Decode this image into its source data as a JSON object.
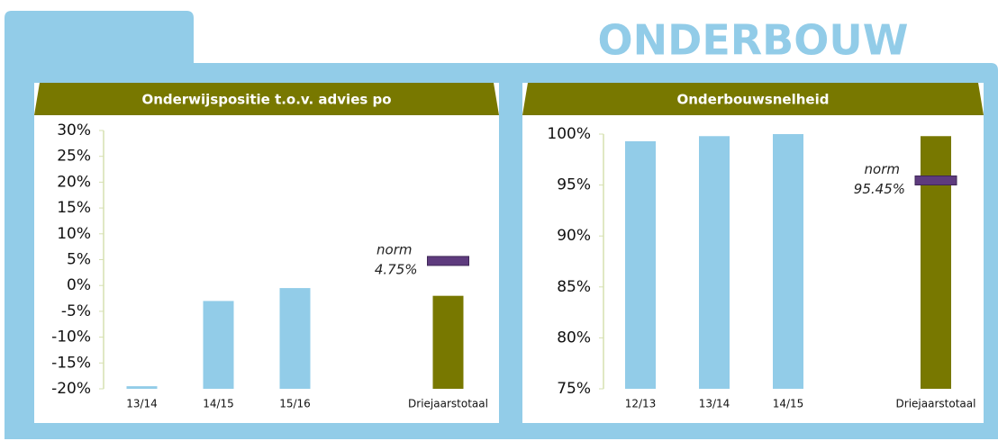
{
  "header": {
    "title": "ONDERBOUW"
  },
  "chart_data": [
    {
      "type": "bar",
      "title": "Onderwijspositie t.o.v. advies po",
      "categories": [
        "13/14",
        "14/15",
        "15/16",
        "Driejaarstotaal"
      ],
      "values": [
        -19.5,
        -3,
        -0.5,
        -2
      ],
      "colors": [
        "#92cce8",
        "#92cce8",
        "#92cce8",
        "#787800"
      ],
      "ylim": [
        -20,
        30
      ],
      "yticks": [
        {
          "value": -20,
          "label": "-20%"
        },
        {
          "value": -15,
          "label": "-15%"
        },
        {
          "value": -10,
          "label": "-10%"
        },
        {
          "value": -5,
          "label": "-5%"
        },
        {
          "value": 0,
          "label": "0%"
        },
        {
          "value": 5,
          "label": "5%"
        },
        {
          "value": 10,
          "label": "10%"
        },
        {
          "value": 15,
          "label": "15%"
        },
        {
          "value": 20,
          "label": "20%"
        },
        {
          "value": 25,
          "label": "25%"
        },
        {
          "value": 30,
          "label": "30%"
        }
      ],
      "norm": {
        "label": "norm",
        "value": 4.75,
        "value_label": "4.75%",
        "color": "#5e3b7e"
      }
    },
    {
      "type": "bar",
      "title": "Onderbouwsnelheid",
      "categories": [
        "12/13",
        "13/14",
        "14/15",
        "Driejaarstotaal"
      ],
      "values": [
        99.3,
        99.8,
        100,
        99.8
      ],
      "colors": [
        "#92cce8",
        "#92cce8",
        "#92cce8",
        "#787800"
      ],
      "ylim": [
        75,
        100
      ],
      "yticks": [
        {
          "value": 75,
          "label": "75%"
        },
        {
          "value": 80,
          "label": "80%"
        },
        {
          "value": 85,
          "label": "85%"
        },
        {
          "value": 90,
          "label": "90%"
        },
        {
          "value": 95,
          "label": "95%"
        },
        {
          "value": 100,
          "label": "100%"
        }
      ],
      "norm": {
        "label": "norm",
        "value": 95.45,
        "value_label": "95.45%",
        "color": "#5e3b7e"
      }
    }
  ]
}
